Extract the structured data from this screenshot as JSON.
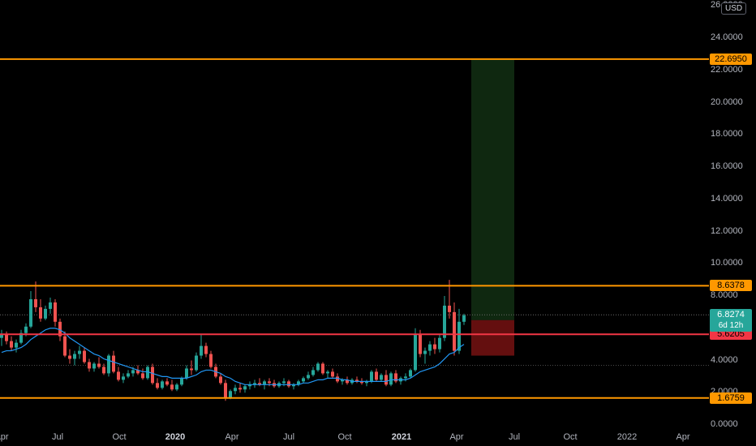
{
  "chart_data": {
    "type": "candlestick",
    "currency": "USD",
    "y_axis": {
      "ticks": [
        "24.0000",
        "22.0000",
        "20.0000",
        "18.0000",
        "16.0000",
        "14.0000",
        "12.0000",
        "10.0000",
        "8.0000",
        "6.0000",
        "4.0000",
        "2.0000",
        "0.0000"
      ],
      "top_partial": "26.0000",
      "ylim": [
        0,
        26.0
      ]
    },
    "x_axis": {
      "ticks": [
        {
          "label": "Apr",
          "bold": false
        },
        {
          "label": "Jul",
          "bold": false
        },
        {
          "label": "Oct",
          "bold": false
        },
        {
          "label": "2020",
          "bold": true
        },
        {
          "label": "Apr",
          "bold": false
        },
        {
          "label": "Jul",
          "bold": false
        },
        {
          "label": "Oct",
          "bold": false
        },
        {
          "label": "2021",
          "bold": true
        },
        {
          "label": "Apr",
          "bold": false
        },
        {
          "label": "Jul",
          "bold": false
        },
        {
          "label": "Oct",
          "bold": false
        },
        {
          "label": "2022",
          "bold": false
        },
        {
          "label": "Apr",
          "bold": false
        }
      ]
    },
    "horizontal_levels": [
      {
        "value": 22.695,
        "label": "22.6950",
        "color": "#ff9800"
      },
      {
        "value": 8.6378,
        "label": "8.6378",
        "color": "#ff9800"
      },
      {
        "value": 5.6205,
        "label": "5.6205",
        "color": "#f23645"
      },
      {
        "value": 1.6759,
        "label": "1.6759",
        "color": "#ff9800"
      }
    ],
    "current_price": {
      "value": 6.8274,
      "label": "6.8274",
      "countdown": "6d 12h",
      "color": "#26a69a"
    },
    "position_tool": {
      "entry": 6.5,
      "target": 22.695,
      "stop": 4.3
    },
    "candles": [
      [
        5.4,
        5.9,
        4.9,
        5.6
      ],
      [
        5.6,
        5.8,
        5.0,
        5.2
      ],
      [
        5.2,
        5.5,
        4.6,
        4.8
      ],
      [
        4.8,
        5.3,
        4.5,
        5.1
      ],
      [
        5.1,
        5.9,
        5.0,
        5.7
      ],
      [
        5.7,
        6.3,
        5.5,
        6.1
      ],
      [
        6.1,
        8.3,
        6.0,
        7.8
      ],
      [
        7.8,
        8.9,
        7.0,
        7.3
      ],
      [
        7.3,
        7.8,
        6.4,
        6.6
      ],
      [
        6.6,
        7.4,
        6.5,
        7.2
      ],
      [
        7.2,
        7.9,
        6.9,
        7.6
      ],
      [
        7.6,
        7.8,
        6.1,
        6.4
      ],
      [
        6.4,
        6.6,
        5.2,
        5.5
      ],
      [
        5.5,
        5.8,
        4.2,
        4.3
      ],
      [
        4.3,
        4.7,
        3.8,
        4.1
      ],
      [
        4.1,
        4.6,
        3.7,
        4.4
      ],
      [
        4.4,
        4.9,
        4.1,
        4.6
      ],
      [
        4.6,
        4.8,
        3.8,
        3.9
      ],
      [
        3.9,
        4.1,
        3.3,
        3.5
      ],
      [
        3.5,
        3.9,
        3.3,
        3.8
      ],
      [
        3.8,
        4.2,
        3.5,
        3.6
      ],
      [
        3.6,
        3.8,
        3.1,
        3.2
      ],
      [
        3.2,
        4.4,
        3.0,
        4.3
      ],
      [
        4.3,
        4.6,
        3.2,
        3.3
      ],
      [
        3.3,
        3.6,
        2.7,
        2.8
      ],
      [
        2.8,
        3.2,
        2.6,
        3.0
      ],
      [
        3.0,
        3.4,
        2.9,
        3.2
      ],
      [
        3.2,
        3.6,
        3.0,
        3.4
      ],
      [
        3.4,
        3.7,
        3.1,
        3.2
      ],
      [
        3.2,
        3.5,
        2.8,
        2.9
      ],
      [
        2.9,
        3.7,
        2.8,
        3.6
      ],
      [
        3.6,
        3.8,
        2.5,
        2.6
      ],
      [
        2.6,
        2.9,
        2.2,
        2.3
      ],
      [
        2.3,
        2.8,
        2.2,
        2.7
      ],
      [
        2.7,
        2.9,
        2.4,
        2.5
      ],
      [
        2.5,
        2.8,
        2.1,
        2.2
      ],
      [
        2.2,
        2.6,
        2.1,
        2.5
      ],
      [
        2.5,
        3.0,
        2.4,
        2.9
      ],
      [
        2.9,
        3.7,
        2.8,
        3.5
      ],
      [
        3.5,
        4.0,
        3.1,
        3.4
      ],
      [
        3.4,
        4.5,
        3.3,
        4.3
      ],
      [
        4.3,
        5.6,
        4.1,
        4.9
      ],
      [
        4.9,
        5.1,
        4.2,
        4.4
      ],
      [
        4.4,
        4.6,
        3.5,
        3.6
      ],
      [
        3.6,
        3.8,
        2.9,
        3.0
      ],
      [
        3.0,
        3.2,
        2.5,
        2.6
      ],
      [
        2.6,
        2.8,
        1.5,
        1.7
      ],
      [
        1.7,
        2.2,
        1.6,
        2.1
      ],
      [
        2.1,
        2.5,
        1.9,
        2.3
      ],
      [
        2.3,
        2.6,
        2.0,
        2.2
      ],
      [
        2.2,
        2.5,
        2.0,
        2.4
      ],
      [
        2.4,
        2.7,
        2.2,
        2.5
      ],
      [
        2.5,
        2.8,
        2.3,
        2.6
      ],
      [
        2.6,
        2.9,
        2.4,
        2.5
      ],
      [
        2.5,
        2.8,
        2.2,
        2.7
      ],
      [
        2.7,
        2.9,
        2.4,
        2.6
      ],
      [
        2.6,
        2.8,
        2.3,
        2.4
      ],
      [
        2.4,
        2.7,
        2.3,
        2.6
      ],
      [
        2.6,
        2.9,
        2.4,
        2.7
      ],
      [
        2.7,
        2.8,
        2.3,
        2.4
      ],
      [
        2.4,
        2.6,
        2.2,
        2.5
      ],
      [
        2.5,
        2.8,
        2.4,
        2.7
      ],
      [
        2.7,
        3.0,
        2.6,
        2.9
      ],
      [
        2.9,
        3.3,
        2.8,
        3.1
      ],
      [
        3.1,
        3.6,
        3.0,
        3.4
      ],
      [
        3.4,
        3.9,
        3.3,
        3.8
      ],
      [
        3.8,
        3.9,
        3.1,
        3.2
      ],
      [
        3.2,
        3.4,
        2.9,
        3.3
      ],
      [
        3.3,
        3.5,
        2.9,
        3.0
      ],
      [
        3.0,
        3.2,
        2.6,
        2.7
      ],
      [
        2.7,
        2.9,
        2.5,
        2.8
      ],
      [
        2.8,
        3.0,
        2.5,
        2.6
      ],
      [
        2.6,
        2.9,
        2.5,
        2.8
      ],
      [
        2.8,
        3.0,
        2.6,
        2.7
      ],
      [
        2.7,
        2.9,
        2.5,
        2.6
      ],
      [
        2.6,
        2.8,
        2.4,
        2.7
      ],
      [
        2.7,
        3.4,
        2.6,
        3.3
      ],
      [
        3.3,
        3.5,
        2.7,
        2.8
      ],
      [
        2.8,
        3.2,
        2.7,
        3.1
      ],
      [
        3.1,
        3.4,
        2.4,
        2.5
      ],
      [
        2.5,
        3.3,
        2.4,
        3.2
      ],
      [
        3.2,
        3.4,
        2.6,
        2.7
      ],
      [
        2.7,
        3.0,
        2.5,
        2.9
      ],
      [
        2.9,
        3.2,
        2.7,
        3.0
      ],
      [
        3.0,
        3.5,
        2.9,
        3.4
      ],
      [
        3.4,
        6.0,
        3.3,
        5.6
      ],
      [
        5.6,
        5.9,
        4.2,
        4.4
      ],
      [
        4.4,
        4.8,
        3.8,
        4.6
      ],
      [
        4.6,
        5.2,
        4.3,
        5.0
      ],
      [
        5.0,
        5.4,
        4.4,
        4.7
      ],
      [
        4.7,
        5.6,
        4.5,
        5.4
      ],
      [
        5.4,
        8.0,
        5.2,
        7.4
      ],
      [
        7.4,
        9.0,
        6.6,
        7.0
      ],
      [
        7.0,
        7.6,
        4.3,
        4.6
      ],
      [
        4.6,
        7.2,
        4.4,
        6.4
      ],
      [
        6.4,
        6.9,
        6.2,
        6.8
      ]
    ],
    "ma": [
      4.5,
      4.6,
      4.6,
      4.7,
      4.8,
      5.0,
      5.3,
      5.5,
      5.7,
      5.9,
      6.0,
      6.0,
      5.9,
      5.7,
      5.4,
      5.2,
      5.0,
      4.8,
      4.6,
      4.4,
      4.3,
      4.1,
      4.0,
      3.9,
      3.8,
      3.7,
      3.6,
      3.5,
      3.4,
      3.3,
      3.3,
      3.2,
      3.1,
      3.0,
      3.0,
      2.9,
      2.9,
      2.9,
      2.9,
      3.0,
      3.1,
      3.3,
      3.4,
      3.4,
      3.3,
      3.2,
      3.0,
      2.9,
      2.7,
      2.6,
      2.5,
      2.5,
      2.5,
      2.5,
      2.5,
      2.5,
      2.5,
      2.5,
      2.5,
      2.5,
      2.5,
      2.5,
      2.6,
      2.6,
      2.7,
      2.8,
      2.8,
      2.9,
      2.9,
      2.9,
      2.8,
      2.8,
      2.7,
      2.7,
      2.7,
      2.7,
      2.7,
      2.7,
      2.7,
      2.7,
      2.8,
      2.8,
      2.8,
      2.8,
      2.9,
      3.1,
      3.3,
      3.4,
      3.5,
      3.6,
      3.8,
      4.1,
      4.4,
      4.5,
      4.8,
      5.0
    ]
  }
}
